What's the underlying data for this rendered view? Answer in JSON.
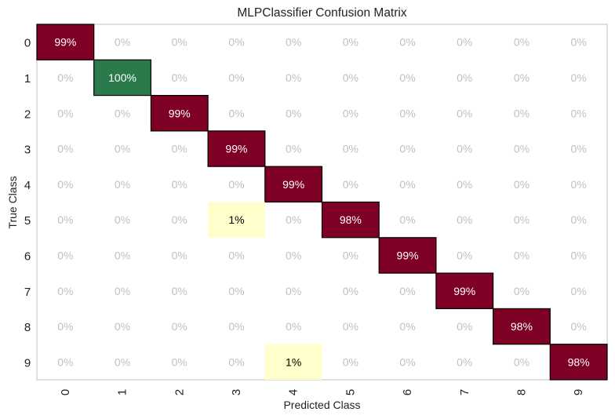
{
  "chart_data": {
    "type": "heatmap",
    "title": "MLPClassifier Confusion Matrix",
    "xlabel": "Predicted Class",
    "ylabel": "True Class",
    "x_ticks": [
      "0",
      "1",
      "2",
      "3",
      "4",
      "5",
      "6",
      "7",
      "8",
      "9"
    ],
    "y_ticks": [
      "0",
      "1",
      "2",
      "3",
      "4",
      "5",
      "6",
      "7",
      "8",
      "9"
    ],
    "cells": [
      [
        "99%",
        "0%",
        "0%",
        "0%",
        "0%",
        "0%",
        "0%",
        "0%",
        "0%",
        "0%"
      ],
      [
        "0%",
        "100%",
        "0%",
        "0%",
        "0%",
        "0%",
        "0%",
        "0%",
        "0%",
        "0%"
      ],
      [
        "0%",
        "0%",
        "99%",
        "0%",
        "0%",
        "0%",
        "0%",
        "0%",
        "0%",
        "0%"
      ],
      [
        "0%",
        "0%",
        "0%",
        "99%",
        "0%",
        "0%",
        "0%",
        "0%",
        "0%",
        "0%"
      ],
      [
        "0%",
        "0%",
        "0%",
        "0%",
        "99%",
        "0%",
        "0%",
        "0%",
        "0%",
        "0%"
      ],
      [
        "0%",
        "0%",
        "0%",
        "1%",
        "0%",
        "98%",
        "0%",
        "0%",
        "0%",
        "0%"
      ],
      [
        "0%",
        "0%",
        "0%",
        "0%",
        "0%",
        "0%",
        "99%",
        "0%",
        "0%",
        "0%"
      ],
      [
        "0%",
        "0%",
        "0%",
        "0%",
        "0%",
        "0%",
        "0%",
        "99%",
        "0%",
        "0%"
      ],
      [
        "0%",
        "0%",
        "0%",
        "0%",
        "0%",
        "0%",
        "0%",
        "0%",
        "98%",
        "0%"
      ],
      [
        "0%",
        "0%",
        "0%",
        "0%",
        "1%",
        "0%",
        "0%",
        "0%",
        "0%",
        "98%"
      ]
    ],
    "colors": {
      "high": "#7f0025",
      "perfect": "#2b7a4b",
      "low": "#ffffcc",
      "zero_text": "#c0c0c0",
      "frame": "#cccccc"
    }
  }
}
